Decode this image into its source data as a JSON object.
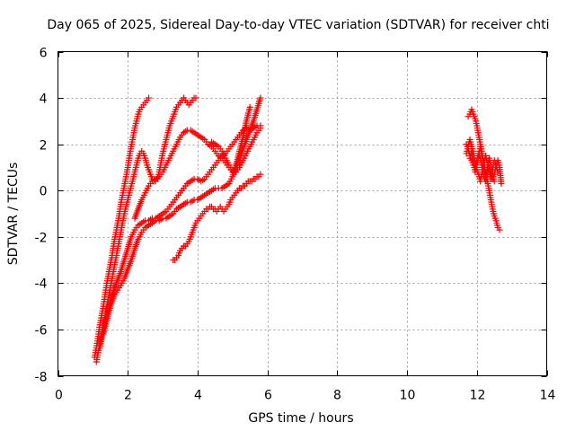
{
  "chart_data": {
    "type": "scatter",
    "title": "Day 065 of 2025, Sidereal Day-to-day VTEC variation (SDTVAR) for receiver chti",
    "xlabel": "GPS time / hours",
    "ylabel": "SDTVAR / TECUs",
    "xlim": [
      0,
      14
    ],
    "ylim": [
      -8,
      6
    ],
    "xticks": [
      "0",
      "2",
      "4",
      "6",
      "8",
      "10",
      "12",
      "14"
    ],
    "yticks": [
      "-8",
      "-6",
      "-4",
      "-2",
      "0",
      "2",
      "4",
      "6"
    ],
    "grid": true,
    "marker": "plus",
    "series_color": "#ff0000",
    "series": [
      {
        "x": [
          1.05,
          1.1,
          1.15,
          1.2,
          1.25,
          1.3,
          1.35,
          1.4,
          1.45,
          1.5,
          1.55,
          1.6,
          1.65,
          1.7,
          1.75,
          1.8,
          1.85,
          1.9,
          1.95,
          2.0,
          2.05,
          2.1,
          2.15,
          2.2,
          2.25,
          2.3,
          2.35,
          2.4,
          2.45,
          2.5,
          2.55,
          2.6
        ],
        "y": [
          -7.2,
          -6.8,
          -6.3,
          -5.8,
          -5.4,
          -5.0,
          -4.5,
          -4.0,
          -3.6,
          -3.2,
          -2.8,
          -2.3,
          -1.9,
          -1.5,
          -1.1,
          -0.6,
          -0.2,
          0.2,
          0.6,
          1.0,
          1.5,
          1.9,
          2.3,
          2.7,
          3.0,
          3.3,
          3.5,
          3.6,
          3.7,
          3.8,
          3.9,
          4.0
        ]
      },
      {
        "x": [
          1.1,
          1.15,
          1.2,
          1.25,
          1.3,
          1.35,
          1.4,
          1.45,
          1.5,
          1.55,
          1.6,
          1.65,
          1.7,
          1.75,
          1.8,
          1.85,
          1.9,
          1.95,
          2.0,
          2.05,
          2.1,
          2.15,
          2.2,
          2.25,
          2.3,
          2.35,
          2.4,
          2.45,
          2.5,
          2.55,
          2.6,
          2.65,
          2.7,
          2.75,
          2.8,
          2.85,
          2.9,
          2.95,
          3.0,
          3.05,
          3.1,
          3.15,
          3.2,
          3.25,
          3.3,
          3.35,
          3.4,
          3.45,
          3.5,
          3.55,
          3.6,
          3.65,
          3.7,
          3.75,
          3.8,
          3.85,
          3.9,
          3.95
        ],
        "y": [
          -7.4,
          -7.0,
          -6.6,
          -6.2,
          -5.8,
          -5.4,
          -5.0,
          -4.6,
          -4.2,
          -3.8,
          -3.4,
          -3.0,
          -2.6,
          -2.2,
          -1.8,
          -1.4,
          -1.0,
          -0.7,
          -0.4,
          -0.1,
          0.2,
          0.5,
          0.8,
          1.1,
          1.4,
          1.6,
          1.7,
          1.6,
          1.4,
          1.1,
          0.9,
          0.7,
          0.5,
          0.4,
          0.4,
          0.5,
          0.8,
          1.2,
          1.6,
          1.9,
          2.2,
          2.5,
          2.8,
          3.0,
          3.2,
          3.4,
          3.6,
          3.7,
          3.8,
          3.9,
          4.0,
          3.9,
          3.8,
          3.7,
          3.8,
          3.9,
          4.0,
          4.0
        ]
      },
      {
        "x": [
          1.2,
          1.3,
          1.4,
          1.5,
          1.6,
          1.7,
          1.8,
          1.9,
          2.0,
          2.1,
          2.2,
          2.3,
          2.4,
          2.5,
          2.6,
          2.7,
          2.8,
          2.9,
          3.0,
          3.1,
          3.2,
          3.3,
          3.4,
          3.5,
          3.6,
          3.7,
          3.8,
          3.9,
          4.0,
          4.1,
          4.2,
          4.3,
          4.4,
          4.5,
          4.6,
          4.7,
          4.8,
          4.9,
          5.0,
          5.1,
          5.2,
          5.3,
          5.4,
          5.5,
          5.6,
          5.7,
          5.8
        ],
        "y": [
          -6.8,
          -6.0,
          -5.3,
          -4.8,
          -4.3,
          -3.9,
          -3.5,
          -3.0,
          -2.5,
          -2.0,
          -1.7,
          -1.5,
          -1.4,
          -1.3,
          -1.3,
          -1.2,
          -1.2,
          -1.1,
          -1.0,
          -0.9,
          -0.7,
          -0.5,
          -0.3,
          -0.1,
          0.1,
          0.3,
          0.4,
          0.5,
          0.5,
          0.4,
          0.5,
          0.7,
          0.9,
          1.1,
          1.3,
          1.5,
          1.6,
          1.8,
          2.0,
          2.2,
          2.4,
          2.6,
          2.7,
          2.6,
          2.7,
          2.8,
          2.8
        ]
      },
      {
        "x": [
          1.3,
          1.4,
          1.5,
          1.6,
          1.7,
          1.8,
          1.9,
          2.0,
          2.1,
          2.2,
          2.3,
          2.4,
          2.5,
          2.6,
          2.7,
          2.8,
          2.9,
          3.0,
          3.1,
          3.2,
          3.3,
          3.4,
          3.5,
          3.6,
          3.7,
          3.8,
          3.9,
          4.0,
          4.1,
          4.2,
          4.3,
          4.4,
          4.5,
          4.6,
          4.7,
          4.8,
          4.9,
          5.0,
          5.1,
          5.2,
          5.3,
          5.4,
          5.5,
          5.6,
          5.7,
          5.8
        ],
        "y": [
          -6.2,
          -5.6,
          -5.0,
          -4.6,
          -4.3,
          -4.1,
          -3.8,
          -3.4,
          -3.0,
          -2.5,
          -2.1,
          -1.8,
          -1.6,
          -1.5,
          -1.4,
          -1.3,
          -1.3,
          -1.2,
          -1.2,
          -1.1,
          -1.0,
          -0.8,
          -0.7,
          -0.6,
          -0.5,
          -0.5,
          -0.4,
          -0.4,
          -0.3,
          -0.2,
          -0.1,
          0.0,
          0.1,
          0.1,
          0.1,
          0.2,
          0.3,
          0.6,
          1.0,
          1.4,
          1.8,
          2.2,
          2.6,
          3.0,
          3.5,
          4.0
        ]
      },
      {
        "x": [
          2.2,
          2.3,
          2.4,
          2.5,
          2.6,
          2.7,
          2.8,
          2.9,
          3.0,
          3.1,
          3.2,
          3.3,
          3.4,
          3.5,
          3.6,
          3.7,
          3.8,
          3.9,
          4.0,
          4.1,
          4.2,
          4.3,
          4.4,
          4.5,
          4.6,
          4.7,
          4.8,
          4.9,
          5.0,
          5.1,
          5.2,
          5.3,
          5.4,
          5.5
        ],
        "y": [
          -1.2,
          -0.8,
          -0.4,
          -0.1,
          0.2,
          0.4,
          0.5,
          0.6,
          0.8,
          1.1,
          1.4,
          1.7,
          2.0,
          2.3,
          2.5,
          2.6,
          2.6,
          2.5,
          2.4,
          2.3,
          2.2,
          2.0,
          1.9,
          1.7,
          1.5,
          1.4,
          1.2,
          1.0,
          0.8,
          1.1,
          1.7,
          2.3,
          3.0,
          3.6
        ]
      },
      {
        "x": [
          3.3,
          3.35,
          3.4,
          3.45,
          3.5,
          3.55,
          3.6,
          3.65,
          3.7,
          3.75,
          3.8,
          3.85,
          3.9,
          3.95,
          4.0,
          4.05,
          4.1,
          4.15,
          4.2,
          4.25,
          4.3,
          4.35,
          4.4,
          4.45,
          4.5,
          4.55,
          4.6,
          4.65,
          4.7,
          4.75,
          4.8,
          4.85,
          4.9,
          4.95,
          5.0,
          5.05,
          5.1,
          5.15,
          5.2,
          5.25,
          5.3,
          5.35,
          5.4,
          5.45,
          5.5,
          5.55,
          5.6,
          5.65,
          5.7,
          5.75,
          5.8
        ],
        "y": [
          -3.0,
          -3.0,
          -2.9,
          -2.8,
          -2.6,
          -2.5,
          -2.4,
          -2.4,
          -2.3,
          -2.2,
          -2.0,
          -1.8,
          -1.6,
          -1.4,
          -1.3,
          -1.2,
          -1.1,
          -1.0,
          -0.9,
          -0.8,
          -0.8,
          -0.7,
          -0.7,
          -0.8,
          -0.8,
          -0.9,
          -0.8,
          -0.7,
          -0.8,
          -0.9,
          -0.8,
          -0.7,
          -0.6,
          -0.4,
          -0.3,
          -0.2,
          -0.1,
          0.0,
          0.1,
          0.1,
          0.2,
          0.2,
          0.3,
          0.4,
          0.4,
          0.4,
          0.5,
          0.5,
          0.6,
          0.6,
          0.7
        ]
      },
      {
        "x": [
          4.4,
          4.5,
          4.6,
          4.7,
          4.8,
          4.9,
          5.0,
          5.1,
          5.2,
          5.3,
          5.4,
          5.5,
          5.6,
          5.7,
          5.8
        ],
        "y": [
          2.1,
          2.0,
          1.9,
          1.7,
          1.4,
          1.1,
          0.9,
          0.8,
          1.0,
          1.3,
          1.6,
          1.9,
          2.2,
          2.5,
          2.7
        ]
      },
      {
        "x": [
          11.75,
          11.8,
          11.85,
          11.9,
          11.95,
          12.0,
          12.05,
          12.1,
          12.15,
          12.2,
          12.25,
          12.3,
          12.35,
          12.4,
          12.45,
          12.5,
          12.55,
          12.6,
          12.65
        ],
        "y": [
          3.2,
          3.3,
          3.5,
          3.3,
          3.1,
          2.8,
          2.4,
          2.0,
          1.6,
          1.2,
          0.8,
          0.4,
          0.0,
          -0.4,
          -0.8,
          -1.1,
          -1.3,
          -1.6,
          -1.7
        ]
      },
      {
        "x": [
          11.7,
          11.75,
          11.8,
          11.85,
          11.9,
          11.95,
          12.0,
          12.05,
          12.1,
          12.15,
          12.2,
          12.25,
          12.3,
          12.35,
          12.4,
          12.45,
          12.5,
          12.55,
          12.6,
          12.65,
          12.7
        ],
        "y": [
          2.0,
          1.8,
          1.5,
          1.3,
          1.1,
          1.0,
          1.3,
          1.6,
          1.4,
          1.0,
          0.6,
          0.4,
          0.7,
          1.0,
          0.8,
          0.5,
          0.7,
          1.1,
          1.3,
          1.0,
          0.3
        ]
      },
      {
        "x": [
          11.7,
          11.75,
          11.8,
          11.85,
          11.9,
          11.95,
          12.0,
          12.05,
          12.1,
          12.15,
          12.2,
          12.25,
          12.3,
          12.35,
          12.4,
          12.45,
          12.5,
          12.55,
          12.6
        ],
        "y": [
          1.6,
          1.9,
          2.2,
          1.9,
          1.6,
          1.2,
          0.9,
          0.7,
          0.4,
          0.8,
          1.2,
          1.5,
          1.2,
          0.9,
          0.5,
          0.9,
          1.3,
          1.1,
          0.8
        ]
      },
      {
        "x": [
          11.8,
          11.85,
          11.9,
          11.95,
          12.0,
          12.05,
          12.1,
          12.15,
          12.2,
          12.25,
          12.3,
          12.35,
          12.4,
          12.45,
          12.5
        ],
        "y": [
          1.4,
          1.7,
          1.2,
          0.8,
          1.1,
          1.5,
          1.9,
          1.5,
          1.0,
          0.6,
          1.0,
          1.4,
          1.1,
          0.7,
          0.4
        ]
      }
    ]
  }
}
